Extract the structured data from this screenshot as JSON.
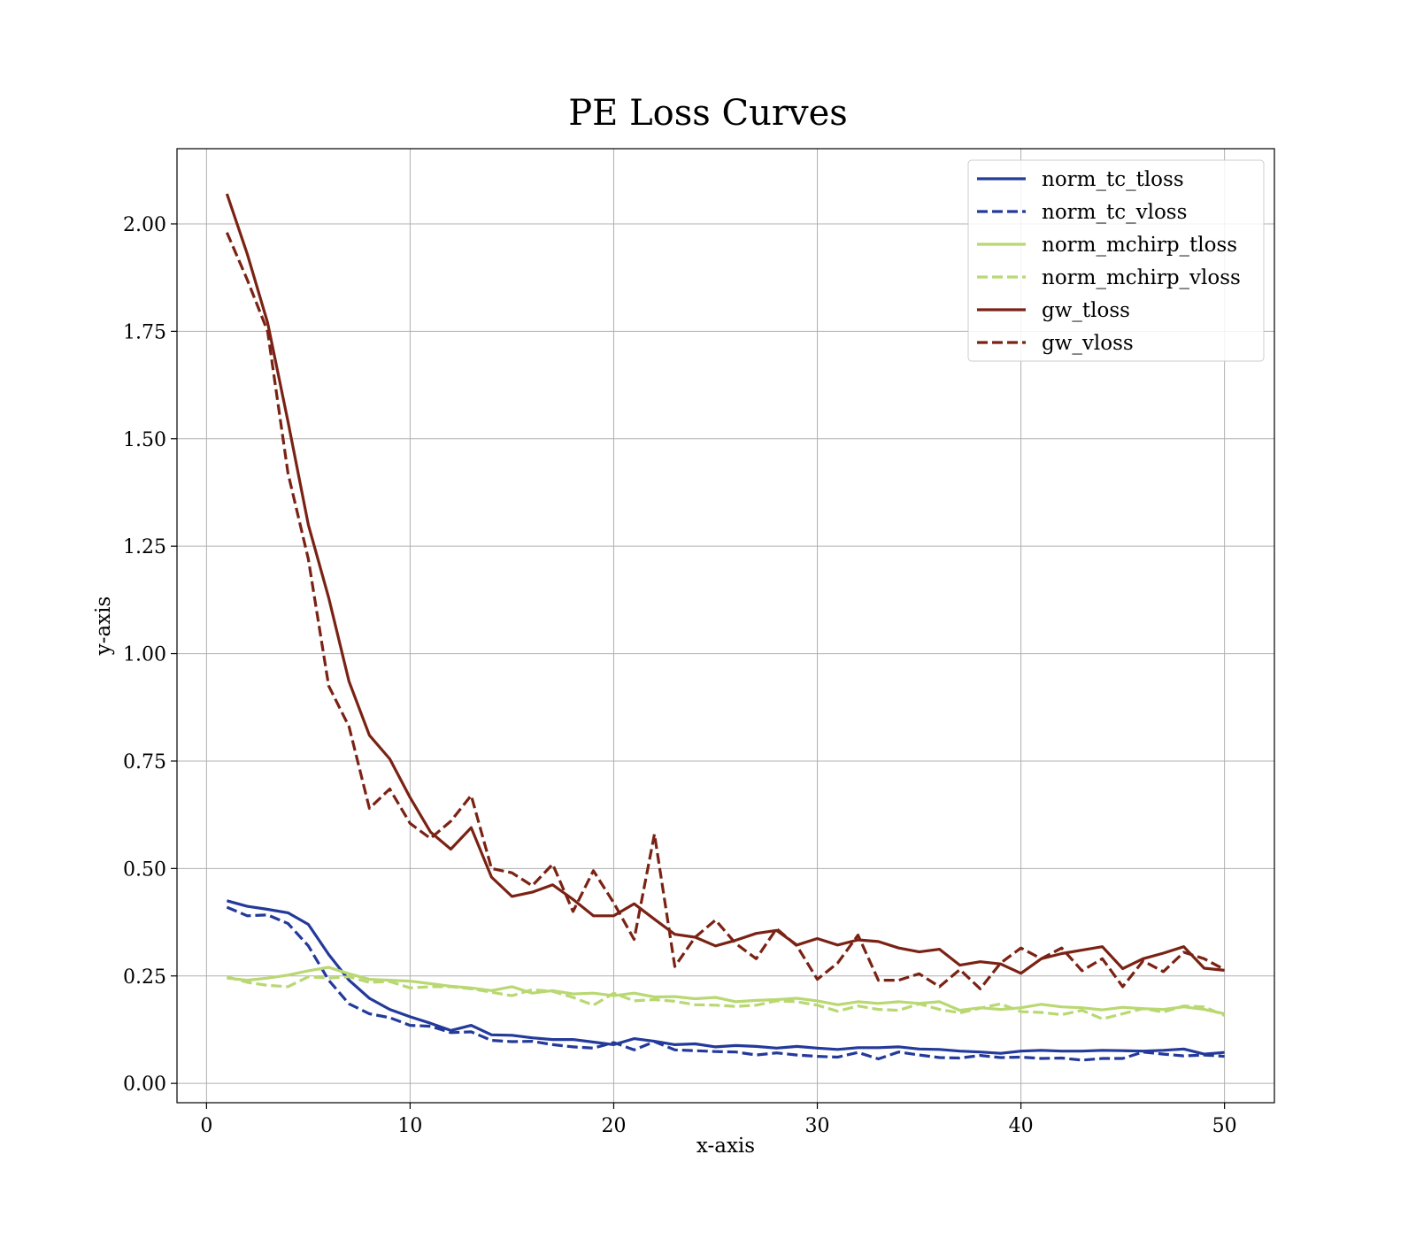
{
  "chart_data": {
    "type": "line",
    "title": "PE Loss Curves",
    "xlabel": "x-axis",
    "ylabel": "y-axis",
    "xlim": [
      -1.45,
      52.45
    ],
    "ylim": [
      -0.045,
      2.175
    ],
    "xticks": [
      "0",
      "10",
      "20",
      "30",
      "40",
      "50"
    ],
    "xtick_values": [
      0,
      10,
      20,
      30,
      40,
      50
    ],
    "yticks": [
      "0.00",
      "0.25",
      "0.50",
      "0.75",
      "1.00",
      "1.25",
      "1.50",
      "1.75",
      "2.00"
    ],
    "ytick_values": [
      0,
      0.25,
      0.5,
      0.75,
      1.0,
      1.25,
      1.5,
      1.75,
      2.0
    ],
    "grid": true,
    "legend_position": "top-right",
    "x": [
      1,
      2,
      3,
      4,
      5,
      6,
      7,
      8,
      9,
      10,
      11,
      12,
      13,
      14,
      15,
      16,
      17,
      18,
      19,
      20,
      21,
      22,
      23,
      24,
      25,
      26,
      27,
      28,
      29,
      30,
      31,
      32,
      33,
      34,
      35,
      36,
      37,
      38,
      39,
      40,
      41,
      42,
      43,
      44,
      45,
      46,
      47,
      48,
      49,
      50
    ],
    "series": [
      {
        "name": "norm_tc_tloss",
        "color": "#233a9a",
        "dash": "solid",
        "values": [
          0.425,
          0.412,
          0.405,
          0.397,
          0.37,
          0.3,
          0.24,
          0.198,
          0.172,
          0.155,
          0.14,
          0.123,
          0.135,
          0.113,
          0.112,
          0.106,
          0.102,
          0.102,
          0.096,
          0.09,
          0.104,
          0.098,
          0.09,
          0.092,
          0.085,
          0.088,
          0.086,
          0.082,
          0.086,
          0.082,
          0.079,
          0.083,
          0.083,
          0.085,
          0.08,
          0.079,
          0.075,
          0.073,
          0.07,
          0.075,
          0.077,
          0.075,
          0.075,
          0.077,
          0.076,
          0.075,
          0.077,
          0.08,
          0.068,
          0.072
        ]
      },
      {
        "name": "norm_tc_vloss",
        "color": "#233a9a",
        "dash": "dashed",
        "values": [
          0.41,
          0.39,
          0.392,
          0.372,
          0.32,
          0.24,
          0.185,
          0.162,
          0.153,
          0.135,
          0.133,
          0.118,
          0.12,
          0.1,
          0.097,
          0.098,
          0.09,
          0.085,
          0.082,
          0.095,
          0.078,
          0.097,
          0.078,
          0.076,
          0.074,
          0.073,
          0.066,
          0.071,
          0.066,
          0.063,
          0.061,
          0.072,
          0.057,
          0.073,
          0.066,
          0.06,
          0.059,
          0.065,
          0.06,
          0.061,
          0.058,
          0.059,
          0.054,
          0.058,
          0.058,
          0.073,
          0.068,
          0.064,
          0.066,
          0.063
        ]
      },
      {
        "name": "norm_mchirp_tloss",
        "color": "#b9d872",
        "dash": "solid",
        "values": [
          0.245,
          0.24,
          0.245,
          0.252,
          0.262,
          0.27,
          0.255,
          0.242,
          0.24,
          0.238,
          0.232,
          0.226,
          0.222,
          0.216,
          0.225,
          0.21,
          0.216,
          0.208,
          0.21,
          0.204,
          0.21,
          0.201,
          0.202,
          0.197,
          0.2,
          0.19,
          0.193,
          0.195,
          0.198,
          0.192,
          0.183,
          0.19,
          0.186,
          0.19,
          0.186,
          0.19,
          0.17,
          0.176,
          0.172,
          0.176,
          0.184,
          0.178,
          0.176,
          0.171,
          0.177,
          0.174,
          0.172,
          0.178,
          0.172,
          0.162
        ]
      },
      {
        "name": "norm_mchirp_vloss",
        "color": "#b9d872",
        "dash": "dashed",
        "values": [
          0.248,
          0.235,
          0.228,
          0.225,
          0.248,
          0.245,
          0.248,
          0.235,
          0.237,
          0.222,
          0.225,
          0.225,
          0.22,
          0.212,
          0.204,
          0.218,
          0.214,
          0.2,
          0.182,
          0.21,
          0.192,
          0.195,
          0.191,
          0.183,
          0.182,
          0.179,
          0.182,
          0.192,
          0.19,
          0.182,
          0.168,
          0.18,
          0.172,
          0.17,
          0.185,
          0.172,
          0.164,
          0.175,
          0.185,
          0.167,
          0.165,
          0.16,
          0.17,
          0.15,
          0.162,
          0.174,
          0.166,
          0.18,
          0.178,
          0.158
        ]
      },
      {
        "name": "gw_tloss",
        "color": "#7a2214",
        "dash": "solid",
        "values": [
          2.07,
          1.93,
          1.77,
          1.54,
          1.3,
          1.13,
          0.935,
          0.81,
          0.755,
          0.665,
          0.585,
          0.545,
          0.595,
          0.48,
          0.435,
          0.445,
          0.462,
          0.428,
          0.39,
          0.39,
          0.418,
          0.382,
          0.347,
          0.34,
          0.32,
          0.333,
          0.349,
          0.356,
          0.322,
          0.337,
          0.322,
          0.334,
          0.33,
          0.315,
          0.306,
          0.312,
          0.275,
          0.283,
          0.278,
          0.256,
          0.29,
          0.302,
          0.31,
          0.318,
          0.267,
          0.29,
          0.303,
          0.318,
          0.268,
          0.263
        ]
      },
      {
        "name": "gw_vloss",
        "color": "#7a2214",
        "dash": "dashed",
        "values": [
          1.98,
          1.87,
          1.75,
          1.42,
          1.22,
          0.925,
          0.83,
          0.64,
          0.685,
          0.605,
          0.57,
          0.61,
          0.67,
          0.5,
          0.49,
          0.46,
          0.51,
          0.4,
          0.495,
          0.42,
          0.335,
          0.58,
          0.272,
          0.34,
          0.38,
          0.325,
          0.29,
          0.36,
          0.32,
          0.242,
          0.28,
          0.345,
          0.24,
          0.24,
          0.255,
          0.225,
          0.265,
          0.22,
          0.28,
          0.315,
          0.29,
          0.315,
          0.262,
          0.29,
          0.225,
          0.285,
          0.26,
          0.305,
          0.29,
          0.265
        ]
      }
    ]
  }
}
